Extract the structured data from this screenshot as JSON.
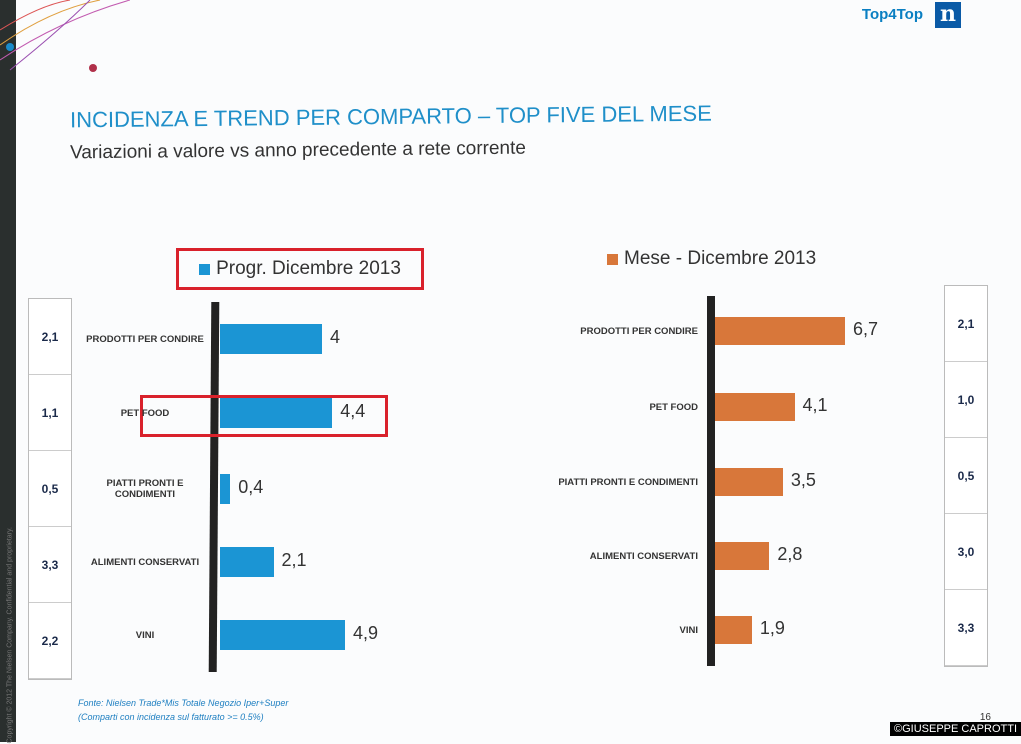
{
  "header": {
    "brand": "Top4Top",
    "logo_letter": "n",
    "title": "INCIDENZA E TREND PER COMPARTO – TOP FIVE DEL MESE",
    "subtitle": "Variazioni a valore vs anno precedente a rete corrente"
  },
  "copyright": "Copyright © 2012 The Nielsen Company. Confidential and proprietary.",
  "chart_data": [
    {
      "type": "bar",
      "orientation": "horizontal",
      "title": "Progr. Dicembre 2013",
      "color": "#1b95d4",
      "categories": [
        "PRODOTTI PER CONDIRE",
        "PET FOOD",
        "PIATTI PRONTI E CONDIMENTI",
        "ALIMENTI CONSERVATI",
        "VINI"
      ],
      "values": [
        4,
        4.4,
        0.4,
        2.1,
        4.9
      ],
      "labels": [
        "4",
        "4,4",
        "0,4",
        "2,1",
        "4,9"
      ],
      "side_values": [
        "2,1",
        "1,1",
        "0,5",
        "3,3",
        "2,2"
      ],
      "highlight": "PET FOOD"
    },
    {
      "type": "bar",
      "orientation": "horizontal",
      "title": "Mese - Dicembre 2013",
      "color": "#d8773a",
      "categories": [
        "PRODOTTI PER CONDIRE",
        "PET FOOD",
        "PIATTI PRONTI E CONDIMENTI",
        "ALIMENTI CONSERVATI",
        "VINI"
      ],
      "values": [
        6.7,
        4.1,
        3.5,
        2.8,
        1.9
      ],
      "labels": [
        "6,7",
        "4,1",
        "3,5",
        "2,8",
        "1,9"
      ],
      "side_values": [
        "2,1",
        "1,0",
        "0,5",
        "3,0",
        "3,3"
      ]
    }
  ],
  "footer": {
    "source": "Fonte: Nielsen Trade*Mis Totale Negozio Iper+Super",
    "note": "(Comparti con incidenza sul fatturato >= 0.5%)",
    "page": "16",
    "credit": "©GIUSEPPE CAPROTTI"
  }
}
